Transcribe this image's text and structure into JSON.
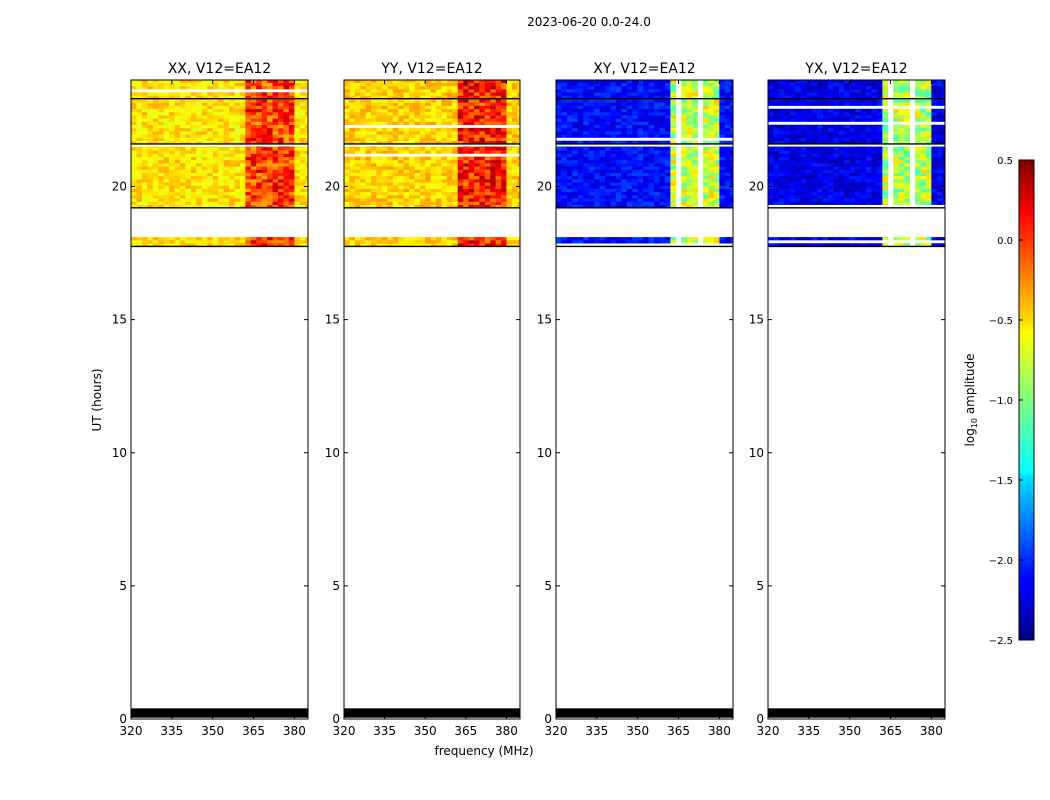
{
  "chart_data": {
    "type": "heatmap",
    "suptitle": "2023-06-20 0.0-24.0",
    "xlabel": "frequency (MHz)",
    "ylabel": "UT (hours)",
    "xlim": [
      320,
      385
    ],
    "ylim": [
      0,
      24
    ],
    "xticks": [
      320,
      335,
      350,
      365,
      380
    ],
    "yticks": [
      0,
      5,
      10,
      15,
      20
    ],
    "panels": [
      {
        "title": "XX, V12=EA12",
        "product": "XX",
        "base_log10_amplitude": -0.55,
        "rfi_log10_amplitude": -0.05
      },
      {
        "title": "YY, V12=EA12",
        "product": "YY",
        "base_log10_amplitude": -0.5,
        "rfi_log10_amplitude": 0.05
      },
      {
        "title": "XY, V12=EA12",
        "product": "XY",
        "base_log10_amplitude": -2.1,
        "rfi_log10_amplitude": -0.8
      },
      {
        "title": "YX, V12=EA12",
        "product": "YX",
        "base_log10_amplitude": -2.2,
        "rfi_log10_amplitude": -0.85
      }
    ],
    "data_time_blocks_hours": [
      [
        17.75,
        18.1
      ],
      [
        19.2,
        21.5
      ],
      [
        21.6,
        23.4
      ],
      [
        23.3,
        24.0
      ]
    ],
    "flagged_time_blocks_hours": [
      [
        0.05,
        0.4
      ]
    ],
    "rfi_band_mhz": [
      362,
      380
    ],
    "colorbar": {
      "label": "log",
      "label_sub": "10",
      "label_suffix": " amplitude",
      "min": -2.5,
      "max": 0.5,
      "ticks": [
        0.5,
        0.0,
        -0.5,
        -1.0,
        -1.5,
        -2.0,
        -2.5
      ],
      "tick_labels": [
        "0.5",
        "0.0",
        "−0.5",
        "−1.0",
        "−1.5",
        "−2.0",
        "−2.5"
      ],
      "colormap": "jet"
    }
  }
}
